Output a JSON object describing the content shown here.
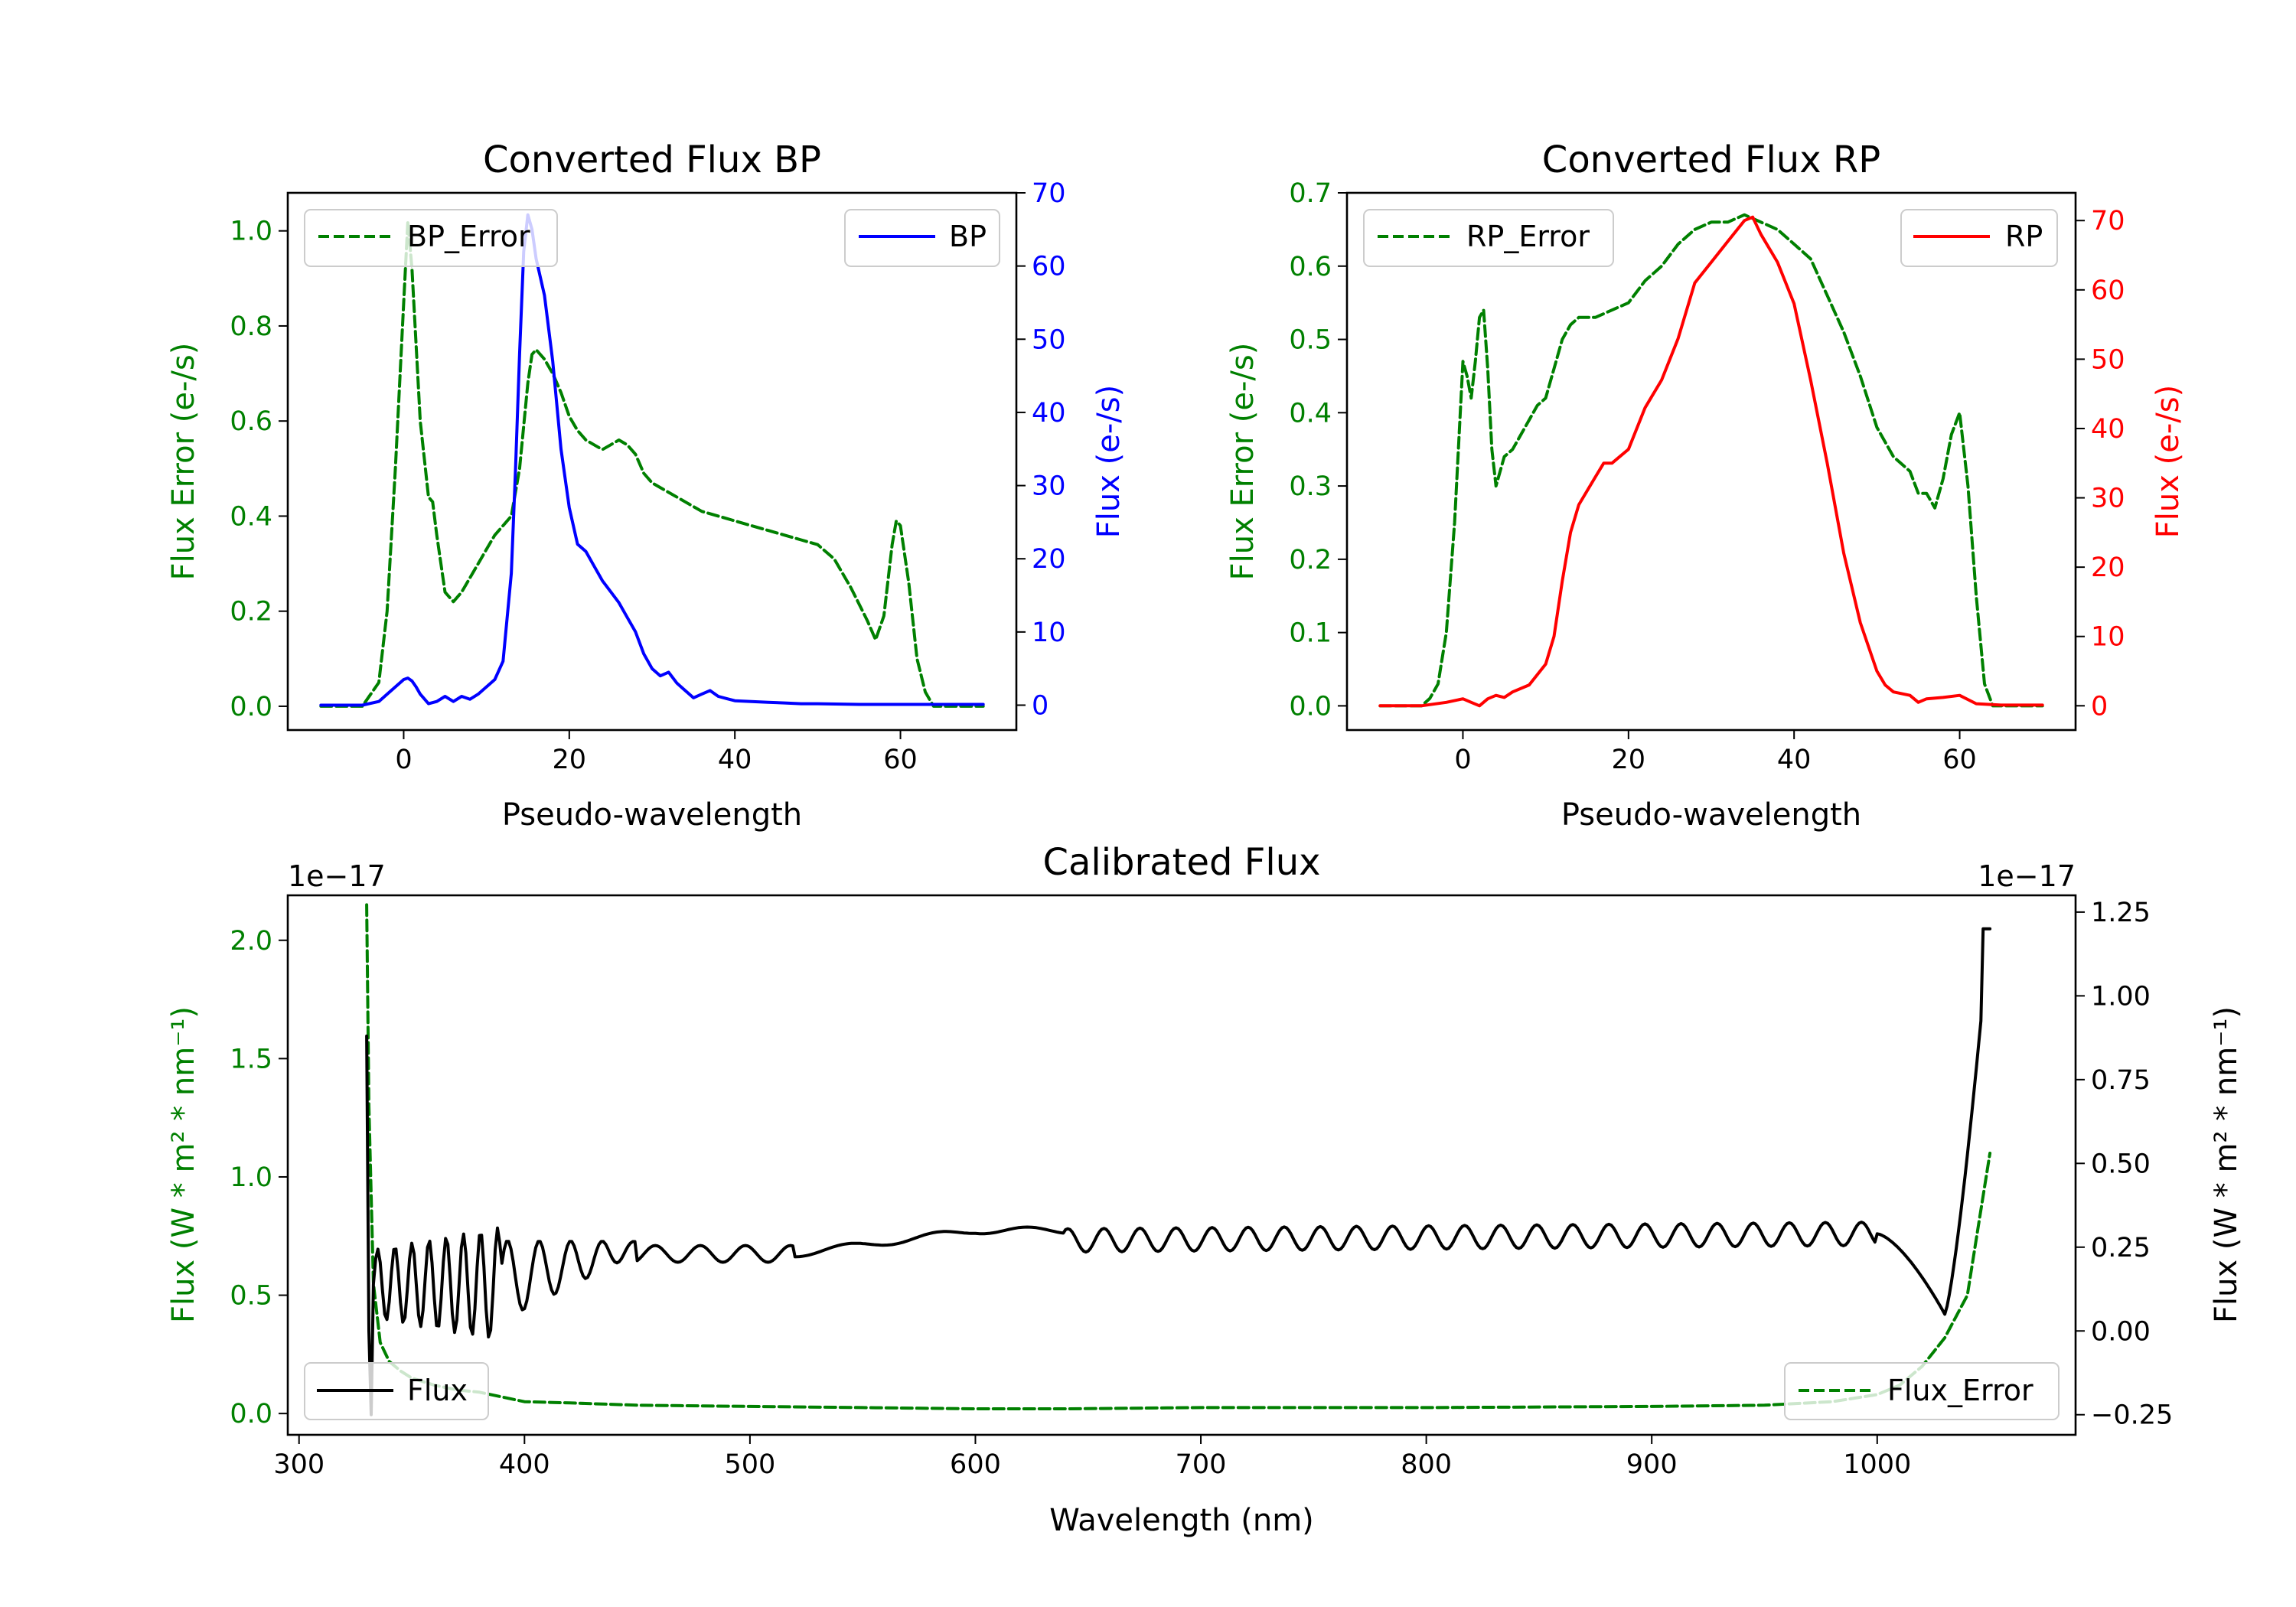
{
  "chart_data": [
    {
      "id": "bp",
      "type": "line",
      "title": "Converted Flux BP",
      "xlabel": "Pseudo-wavelength",
      "ylabel_left": "Flux Error (e-/s)",
      "ylabel_right": "Flux (e-/s)",
      "xlim": [
        -14,
        74
      ],
      "ylim_left": [
        -0.05,
        1.08
      ],
      "ylim_right": [
        -3.4,
        70
      ],
      "xticks": [
        0,
        20,
        40,
        60
      ],
      "yticks_left": [
        0.0,
        0.2,
        0.4,
        0.6,
        0.8,
        1.0
      ],
      "yticks_right": [
        0,
        10,
        20,
        30,
        40,
        50,
        60,
        70
      ],
      "left_color": "#008000",
      "right_color": "#0000ff",
      "legend_left": "BP_Error",
      "legend_right": "BP",
      "series": [
        {
          "name": "BP_Error",
          "axis": "left",
          "color": "#008000",
          "dash": true,
          "x": [
            -10,
            -5,
            -3,
            -2,
            -1,
            0,
            0.5,
            1,
            2,
            3,
            3.5,
            4,
            5,
            6,
            7,
            8,
            9,
            10,
            11,
            12,
            13,
            14,
            15,
            15.5,
            16,
            17,
            18,
            19,
            20,
            21,
            22,
            23,
            24,
            25,
            26,
            27,
            28,
            29,
            30,
            32,
            34,
            36,
            38,
            40,
            42,
            44,
            46,
            48,
            50,
            52,
            54,
            56,
            57,
            58,
            59,
            59.5,
            60,
            61,
            62,
            63,
            64,
            66,
            70
          ],
          "y": [
            0.0,
            0.0,
            0.05,
            0.2,
            0.5,
            0.85,
            1.02,
            0.92,
            0.6,
            0.44,
            0.43,
            0.36,
            0.24,
            0.22,
            0.24,
            0.27,
            0.3,
            0.33,
            0.36,
            0.38,
            0.4,
            0.5,
            0.68,
            0.74,
            0.75,
            0.73,
            0.7,
            0.66,
            0.61,
            0.58,
            0.56,
            0.55,
            0.54,
            0.55,
            0.56,
            0.55,
            0.53,
            0.49,
            0.47,
            0.45,
            0.43,
            0.41,
            0.4,
            0.39,
            0.38,
            0.37,
            0.36,
            0.35,
            0.34,
            0.31,
            0.25,
            0.18,
            0.14,
            0.19,
            0.34,
            0.39,
            0.38,
            0.26,
            0.1,
            0.03,
            0.0,
            0.0,
            0.0
          ]
        },
        {
          "name": "BP",
          "axis": "right",
          "color": "#0000ff",
          "dash": false,
          "x": [
            -10,
            -5,
            -3,
            -1,
            0,
            0.5,
            1,
            1.5,
            2,
            3,
            4,
            5,
            6,
            7,
            8,
            9,
            10,
            11,
            12,
            13,
            13.5,
            14,
            14.5,
            15,
            15.5,
            16,
            17,
            18,
            19,
            20,
            21,
            22,
            23,
            24,
            25,
            26,
            27,
            28,
            29,
            30,
            31,
            32,
            33,
            34,
            35,
            36,
            37,
            38,
            39,
            40,
            42,
            44,
            46,
            48,
            50,
            55,
            60,
            65,
            70
          ],
          "y": [
            0,
            0,
            0.5,
            2.5,
            3.5,
            3.7,
            3.3,
            2.5,
            1.5,
            0.2,
            0.5,
            1.2,
            0.5,
            1.2,
            0.8,
            1.5,
            2.5,
            3.5,
            6,
            18,
            32,
            48,
            62,
            67,
            65,
            61,
            56,
            47,
            35,
            27,
            22,
            21,
            19,
            17,
            15.5,
            14,
            12,
            10,
            7,
            5,
            4,
            4.5,
            3,
            2,
            1,
            1.5,
            2,
            1.2,
            0.9,
            0.6,
            0.5,
            0.4,
            0.3,
            0.2,
            0.2,
            0.1,
            0.1,
            0.1,
            0.1
          ]
        }
      ]
    },
    {
      "id": "rp",
      "type": "line",
      "title": "Converted Flux RP",
      "xlabel": "Pseudo-wavelength",
      "ylabel_left": "Flux Error (e-/s)",
      "ylabel_right": "Flux (e-/s)",
      "xlim": [
        -14,
        74
      ],
      "ylim_left": [
        -0.033,
        0.7
      ],
      "ylim_right": [
        -3.5,
        74
      ],
      "xticks": [
        0,
        20,
        40,
        60
      ],
      "yticks_left": [
        0.0,
        0.1,
        0.2,
        0.3,
        0.4,
        0.5,
        0.6,
        0.7
      ],
      "yticks_right": [
        0,
        10,
        20,
        30,
        40,
        50,
        60,
        70
      ],
      "left_color": "#008000",
      "right_color": "#ff0000",
      "legend_left": "RP_Error",
      "legend_right": "RP",
      "series": [
        {
          "name": "RP_Error",
          "axis": "left",
          "color": "#008000",
          "dash": true,
          "x": [
            -10,
            -5,
            -4,
            -3,
            -2,
            -1,
            0,
            0.5,
            1,
            1.5,
            2,
            2.5,
            3,
            3.5,
            4,
            5,
            6,
            7,
            8,
            9,
            10,
            11,
            12,
            13,
            14,
            16,
            18,
            20,
            22,
            24,
            26,
            28,
            30,
            32,
            34,
            36,
            38,
            40,
            42,
            44,
            46,
            48,
            50,
            52,
            54,
            55,
            56,
            57,
            58,
            59,
            60,
            61,
            62,
            63,
            64,
            66,
            70
          ],
          "y": [
            0.0,
            0.0,
            0.01,
            0.03,
            0.1,
            0.25,
            0.47,
            0.45,
            0.42,
            0.47,
            0.53,
            0.54,
            0.46,
            0.35,
            0.3,
            0.34,
            0.35,
            0.37,
            0.39,
            0.41,
            0.42,
            0.46,
            0.5,
            0.52,
            0.53,
            0.53,
            0.54,
            0.55,
            0.58,
            0.6,
            0.63,
            0.65,
            0.66,
            0.66,
            0.67,
            0.66,
            0.65,
            0.63,
            0.61,
            0.56,
            0.51,
            0.45,
            0.38,
            0.34,
            0.32,
            0.29,
            0.29,
            0.27,
            0.31,
            0.37,
            0.4,
            0.3,
            0.15,
            0.03,
            0.0,
            0.0,
            0.0
          ]
        },
        {
          "name": "RP",
          "axis": "right",
          "color": "#ff0000",
          "dash": false,
          "x": [
            -10,
            -5,
            -2,
            0,
            1,
            2,
            3,
            4,
            5,
            6,
            8,
            10,
            11,
            12,
            13,
            14,
            15,
            16,
            17,
            18,
            19,
            20,
            22,
            24,
            26,
            28,
            30,
            32,
            34,
            35,
            36,
            38,
            40,
            42,
            44,
            46,
            48,
            50,
            51,
            52,
            54,
            55,
            56,
            58,
            60,
            62,
            65,
            70
          ],
          "y": [
            0,
            0,
            0.5,
            1,
            0.5,
            0,
            1,
            1.5,
            1.2,
            2,
            3,
            6,
            10,
            18,
            25,
            29,
            31,
            33,
            35,
            35,
            36,
            37,
            43,
            47,
            53,
            61,
            64,
            67,
            70,
            70.5,
            68,
            64,
            58,
            47,
            35,
            22,
            12,
            5,
            3,
            2,
            1.5,
            0.5,
            1,
            1.2,
            1.5,
            0.3,
            0.1,
            0.1
          ]
        }
      ]
    },
    {
      "id": "cal",
      "type": "line",
      "title": "Calibrated Flux",
      "xlabel": "Wavelength (nm)",
      "ylabel_left": "Flux (W * m² * nm⁻¹)",
      "ylabel_right": "Flux (W * m² * nm⁻¹)",
      "offset_left": "1e−17",
      "offset_right": "1e−17",
      "xlim": [
        295,
        1088
      ],
      "ylim_left": [
        -0.09,
        2.19
      ],
      "ylim_right": [
        -0.31,
        1.3
      ],
      "xticks": [
        300,
        400,
        500,
        600,
        700,
        800,
        900,
        1000
      ],
      "yticks_left": [
        0.0,
        0.5,
        1.0,
        1.5,
        2.0
      ],
      "ytick_labels_left": [
        "0.0",
        "0.5",
        "1.0",
        "1.5",
        "2.0"
      ],
      "yticks_right": [
        -0.25,
        0.0,
        0.25,
        0.5,
        0.75,
        1.0,
        1.25
      ],
      "ytick_labels_right": [
        "−0.25",
        "0.00",
        "0.25",
        "0.50",
        "0.75",
        "1.00",
        "1.25"
      ],
      "left_color": "#008000",
      "right_color": "#000000",
      "legend_left": "Flux",
      "legend_right": "Flux_Error",
      "series": [
        {
          "name": "Flux_Error",
          "axis": "left",
          "color": "#008000",
          "dash": true,
          "x": [
            330,
            331,
            333,
            336,
            340,
            345,
            350,
            360,
            370,
            380,
            390,
            400,
            420,
            450,
            500,
            550,
            600,
            640,
            700,
            800,
            900,
            950,
            980,
            1000,
            1010,
            1020,
            1030,
            1040,
            1045,
            1050
          ],
          "y": [
            2.15,
            1.3,
            0.55,
            0.3,
            0.22,
            0.18,
            0.15,
            0.12,
            0.1,
            0.09,
            0.07,
            0.05,
            0.045,
            0.035,
            0.03,
            0.025,
            0.02,
            0.02,
            0.025,
            0.025,
            0.03,
            0.035,
            0.05,
            0.08,
            0.12,
            0.2,
            0.32,
            0.5,
            0.8,
            1.1
          ]
        },
        {
          "name": "Flux",
          "axis": "right",
          "color": "#000000",
          "dash": false,
          "x": [],
          "y": []
        }
      ]
    }
  ]
}
